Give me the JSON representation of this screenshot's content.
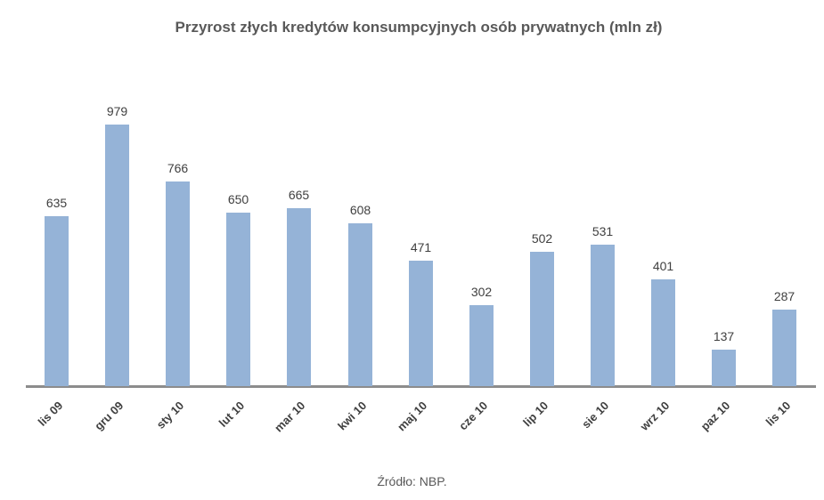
{
  "chart_data": {
    "type": "bar",
    "title": "Przyrost złych kredytów konsumpcyjnych osób prywatnych (mln zł)",
    "categories": [
      "lis 09",
      "gru 09",
      "sty 10",
      "lut 10",
      "mar 10",
      "kwi 10",
      "maj 10",
      "cze 10",
      "lip 10",
      "sie 10",
      "wrz 10",
      "paz 10",
      "lis 10"
    ],
    "values": [
      635,
      979,
      766,
      650,
      665,
      608,
      471,
      302,
      502,
      531,
      401,
      137,
      287
    ],
    "xlabel": "",
    "ylabel": "",
    "ylim": [
      0,
      1000
    ],
    "grid": false,
    "legend": "none",
    "data_labels": true,
    "bar_color": "#95b3d7",
    "source": "Źródło: NBP."
  },
  "header": {
    "title": "Przyrost złych kredytów konsumpcyjnych osób prywatnych (mln zł)"
  },
  "footer": {
    "source": "Źródło: NBP."
  }
}
